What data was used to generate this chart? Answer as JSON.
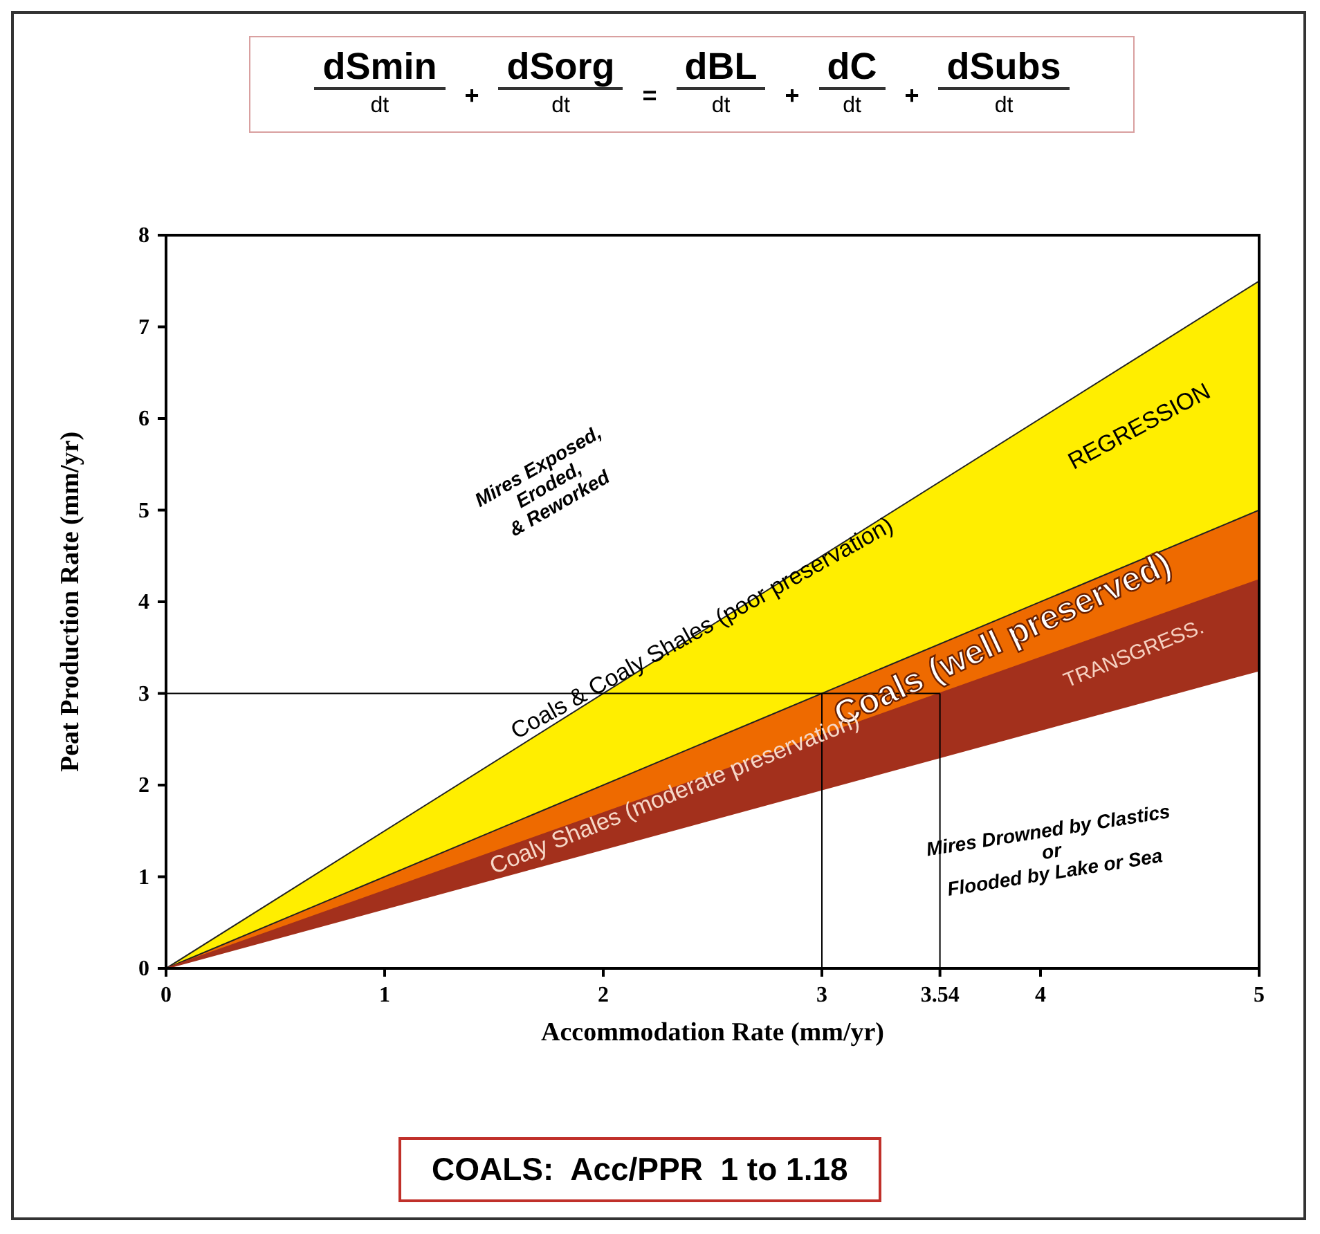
{
  "chart_data": {
    "type": "area",
    "xlabel": "Accommodation Rate (mm/yr)",
    "ylabel": "Peat Production Rate (mm/yr)",
    "x": [
      0,
      5
    ],
    "series": [
      {
        "color": "#ffee00",
        "values": [
          0,
          7.5
        ]
      },
      {
        "color": "#ee6a00",
        "values": [
          0,
          5.0
        ]
      },
      {
        "color": "#a3301c",
        "values": [
          0,
          4.24
        ]
      },
      {
        "color": "#ffffff",
        "values": [
          0,
          3.25
        ]
      }
    ],
    "xlim": [
      0,
      5
    ],
    "xticks": [
      0,
      1,
      2,
      3,
      3.54,
      4,
      5
    ],
    "ylim": [
      0,
      8
    ],
    "yticks": [
      0,
      1,
      2,
      3,
      4,
      5,
      6,
      7,
      8
    ],
    "ref_lines": [
      {
        "axis": "y",
        "value": 3,
        "color": "#000000"
      },
      {
        "axis": "x",
        "value": 3,
        "color": "#000000"
      },
      {
        "axis": "x",
        "value": 3.54,
        "color": "#000000"
      }
    ],
    "annotations": [
      "dSmin dSorg dBL dC dSubs",
      "dt + dt = dt + dt + dt",
      "Mires Exposed,\nEroded,\n& Reworked",
      "REGRESSION",
      "Coals & Coaly Shales (poor preservation)",
      "Coals (well preserved)",
      "TRANSGRESS.",
      "Coaly Shales (moderate preservation)",
      "Mires Drowned by Clastics\nor\nFlooded by Lake or Sea",
      "COALS:  Acc/PPR  1 to 1.18"
    ]
  }
}
